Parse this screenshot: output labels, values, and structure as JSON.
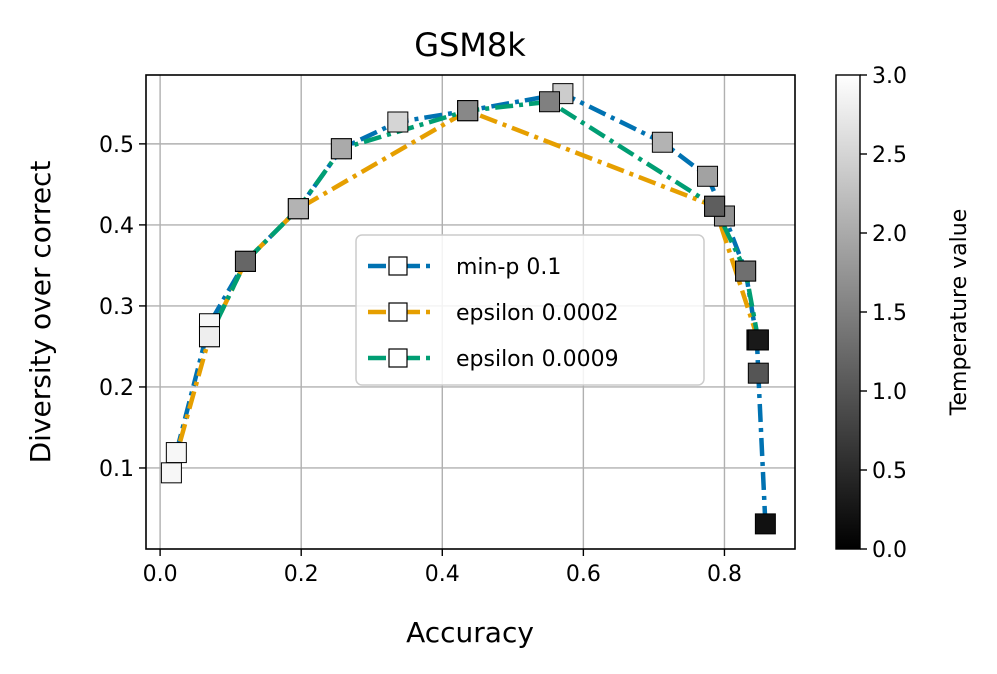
{
  "chart_data": {
    "type": "line",
    "title": "GSM8k",
    "xlabel": "Accuracy",
    "ylabel": "Diversity over correct",
    "xlim": [
      -0.02,
      0.9
    ],
    "ylim": [
      0.0,
      0.585
    ],
    "xticks": [
      "0.0",
      "0.2",
      "0.4",
      "0.6",
      "0.8"
    ],
    "yticks": [
      "0.1",
      "0.2",
      "0.3",
      "0.4",
      "0.5"
    ],
    "grid": true,
    "legend_position": "center-right",
    "colorbar": {
      "label": "Temperature value",
      "range": [
        0.0,
        3.0
      ],
      "ticks": [
        "0.0",
        "0.5",
        "1.0",
        "1.5",
        "2.0",
        "2.5",
        "3.0"
      ],
      "colormap": "gray"
    },
    "series": [
      {
        "name": "min-p 0.1",
        "color": "#0072B2",
        "x": [
          0.858,
          0.848,
          0.846,
          0.83,
          0.8,
          0.776,
          0.712,
          0.571,
          0.436,
          0.337,
          0.257,
          0.196,
          0.121,
          0.07,
          0.023
        ],
        "y": [
          0.031,
          0.217,
          0.258,
          0.343,
          0.411,
          0.46,
          0.502,
          0.562,
          0.541,
          0.527,
          0.494,
          0.42,
          0.355,
          0.278,
          0.119
        ],
        "temperature": [
          0.2,
          1.0,
          0.3,
          1.3,
          1.7,
          1.9,
          2.1,
          2.4,
          1.6,
          2.5,
          2.0,
          2.1,
          1.2,
          2.9,
          2.9
        ]
      },
      {
        "name": "epsilon 0.0002",
        "color": "#E69F00",
        "x": [
          0.848,
          0.786,
          0.436,
          0.196,
          0.121,
          0.07,
          0.016
        ],
        "y": [
          0.258,
          0.423,
          0.541,
          0.42,
          0.355,
          0.262,
          0.094
        ],
        "temperature": [
          0.3,
          1.1,
          1.6,
          2.1,
          1.2,
          2.8,
          2.9
        ]
      },
      {
        "name": "epsilon 0.0009",
        "color": "#009E73",
        "x": [
          0.848,
          0.83,
          0.786,
          0.552,
          0.436,
          0.257,
          0.196,
          0.121,
          0.07
        ],
        "y": [
          0.258,
          0.343,
          0.423,
          0.552,
          0.541,
          0.494,
          0.42,
          0.355,
          0.262
        ],
        "temperature": [
          0.3,
          1.3,
          1.1,
          1.5,
          1.6,
          2.0,
          2.1,
          1.2,
          2.8
        ]
      }
    ]
  }
}
